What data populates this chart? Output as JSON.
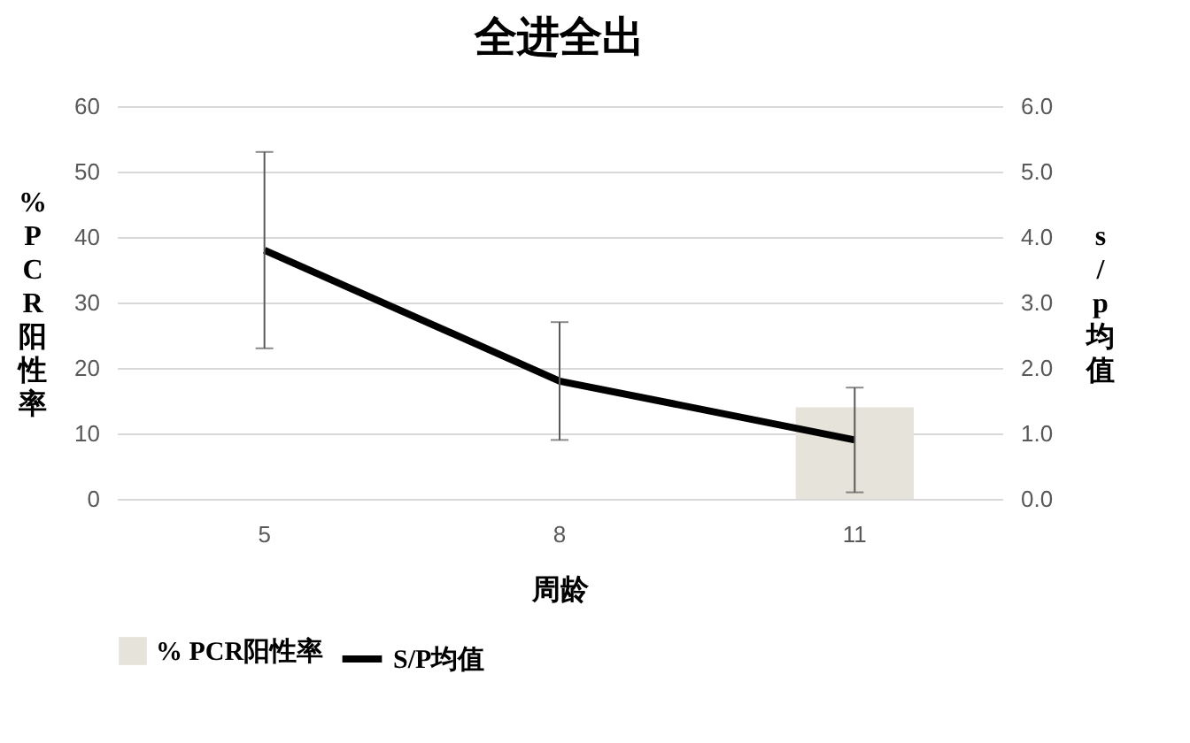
{
  "chart_data": {
    "type": "bar",
    "title": "全进全出",
    "xlabel": "周龄",
    "ylabel": "%PCR阳性率",
    "y2label": "s/p均值",
    "categories": [
      "5",
      "8",
      "11"
    ],
    "series": [
      {
        "name": "% PCR阳性率",
        "color": "#e6e3da",
        "values": [
          0,
          0,
          14
        ]
      },
      {
        "name": "S/P均值",
        "type": "line",
        "axis": "y2",
        "color": "#000000",
        "values": [
          3.8,
          1.8,
          0.9
        ],
        "errors": [
          [
            2.3,
            5.3
          ],
          [
            0.9,
            2.7
          ],
          [
            0.1,
            1.7
          ]
        ]
      }
    ],
    "ylim": [
      0,
      60
    ],
    "yticks": [
      0,
      10,
      20,
      30,
      40,
      50,
      60
    ],
    "y2lim": [
      0,
      6
    ],
    "y2ticks": [
      {
        "value": 0,
        "label": "0.0"
      },
      {
        "value": 1,
        "label": "1.0"
      },
      {
        "value": 2,
        "label": "2.0"
      },
      {
        "value": 3,
        "label": "3.0"
      },
      {
        "value": 4,
        "label": "4.0"
      },
      {
        "value": 5,
        "label": "5.0"
      },
      {
        "value": 6,
        "label": "6.0"
      }
    ],
    "grid": "y",
    "legend": "bottom",
    "marker": "none",
    "line_style": "solid"
  }
}
